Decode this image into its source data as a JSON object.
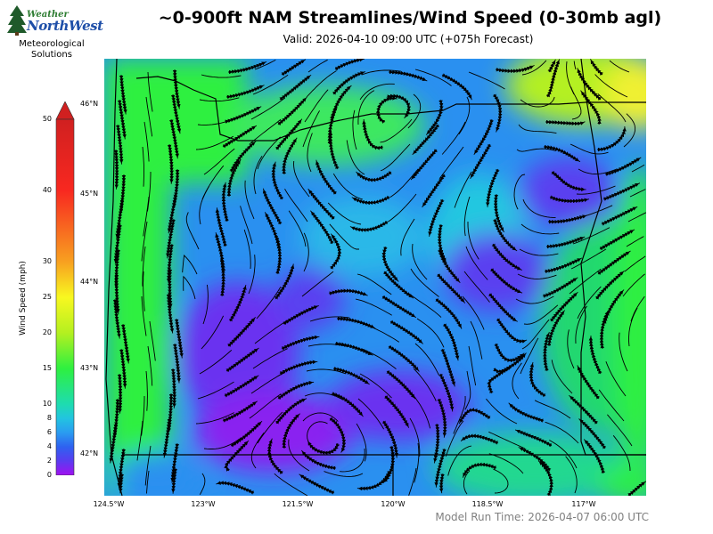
{
  "logo": {
    "word1": "Weather",
    "word2": "NorthWest",
    "subtitle_line1": "Meteorological",
    "subtitle_line2": "Solutions"
  },
  "title": "~0-900ft NAM Streamlines/Wind Speed (0-30mb agl)",
  "valid_text": "Valid: 2026-04-10 09:00 UTC  (+075h Forecast)",
  "run_time": "Model Run Time: 2026-04-07 06:00 UTC",
  "colorbar": {
    "label": "Wind Speed (mph)",
    "ticks": [
      "0",
      "2",
      "4",
      "6",
      "8",
      "10",
      "15",
      "20",
      "25",
      "30",
      "40",
      "50"
    ],
    "stops": [
      {
        "value": 0,
        "color": "#a010f0"
      },
      {
        "value": 2,
        "color": "#5a3cf0"
      },
      {
        "value": 4,
        "color": "#2e62f0"
      },
      {
        "value": 6,
        "color": "#2a9cf0"
      },
      {
        "value": 8,
        "color": "#22c4e0"
      },
      {
        "value": 10,
        "color": "#1edcb0"
      },
      {
        "value": 15,
        "color": "#2ef040"
      },
      {
        "value": 20,
        "color": "#b4f020"
      },
      {
        "value": 25,
        "color": "#f8f820"
      },
      {
        "value": 30,
        "color": "#f8a020"
      },
      {
        "value": 40,
        "color": "#f82820"
      },
      {
        "value": 50,
        "color": "#d02020"
      }
    ]
  },
  "map": {
    "lat_labels": [
      "46°N",
      "45°N",
      "44°N",
      "43°N",
      "42°N"
    ],
    "lon_labels": [
      "124.5°W",
      "123°W",
      "121.5°W",
      "120°W",
      "118.5°W",
      "117°W"
    ]
  }
}
